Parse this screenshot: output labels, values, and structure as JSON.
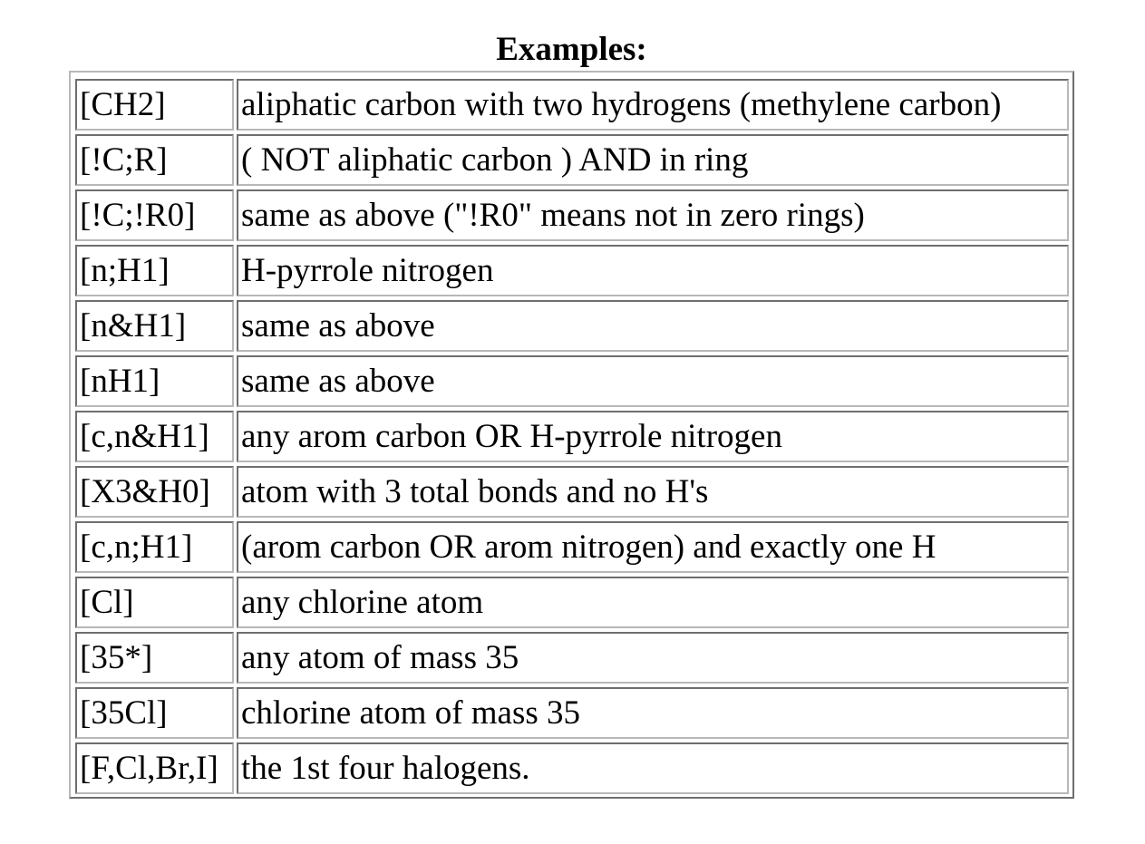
{
  "caption": "Examples:",
  "rows": [
    {
      "pattern": "[CH2]",
      "description": "aliphatic carbon with two hydrogens (methylene carbon)"
    },
    {
      "pattern": "[!C;R]",
      "description": "( NOT aliphatic carbon ) AND in ring"
    },
    {
      "pattern": "[!C;!R0]",
      "description": "same as above (\"!R0\" means not in zero rings)"
    },
    {
      "pattern": "[n;H1]",
      "description": "H-pyrrole nitrogen"
    },
    {
      "pattern": "[n&H1]",
      "description": "same as above"
    },
    {
      "pattern": "[nH1]",
      "description": "same as above"
    },
    {
      "pattern": "[c,n&H1]",
      "description": "any arom carbon OR H-pyrrole nitrogen"
    },
    {
      "pattern": "[X3&H0]",
      "description": "atom with 3 total bonds and no H's"
    },
    {
      "pattern": "[c,n;H1]",
      "description": "(arom carbon OR arom nitrogen) and exactly one H"
    },
    {
      "pattern": "[Cl]",
      "description": "any chlorine atom"
    },
    {
      "pattern": "[35*]",
      "description": "any atom of mass 35"
    },
    {
      "pattern": "[35Cl]",
      "description": "chlorine atom of mass 35"
    },
    {
      "pattern": "[F,Cl,Br,I]",
      "description": "the 1st four halogens."
    }
  ]
}
